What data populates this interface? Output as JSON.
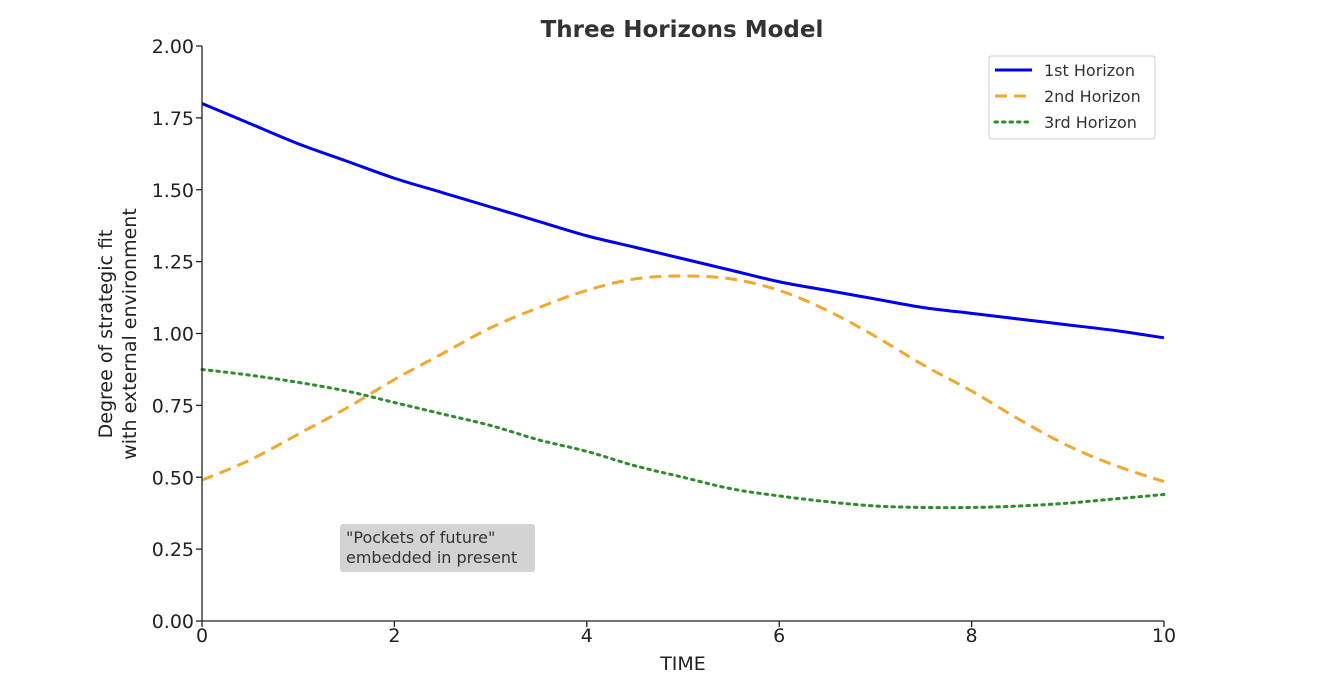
{
  "chart_data": {
    "type": "line",
    "title": "Three Horizons Model",
    "xlabel": "TIME",
    "ylabel_lines": [
      "Degree of strategic fit",
      "with external environment"
    ],
    "xlim": [
      0,
      10
    ],
    "ylim": [
      0,
      2
    ],
    "x_ticks": [
      0,
      2,
      4,
      6,
      8,
      10
    ],
    "x_tick_labels": [
      "0",
      "2",
      "4",
      "6",
      "8",
      "10"
    ],
    "y_ticks": [
      0,
      0.25,
      0.5,
      0.75,
      1.0,
      1.25,
      1.5,
      1.75,
      2.0
    ],
    "y_tick_labels": [
      "0.00",
      "0.25",
      "0.50",
      "0.75",
      "1.00",
      "1.25",
      "1.50",
      "1.75",
      "2.00"
    ],
    "grid": false,
    "legend_position": "top-right",
    "x": [
      0,
      0.5,
      1,
      1.5,
      2,
      2.5,
      3,
      3.5,
      4,
      4.5,
      5,
      5.5,
      6,
      6.5,
      7,
      7.5,
      8,
      8.5,
      9,
      9.5,
      10
    ],
    "series": [
      {
        "name": "1st Horizon",
        "color": "#0000ee",
        "style": "solid",
        "values": [
          1.8,
          1.73,
          1.66,
          1.6,
          1.54,
          1.49,
          1.44,
          1.39,
          1.34,
          1.3,
          1.26,
          1.22,
          1.18,
          1.15,
          1.12,
          1.09,
          1.07,
          1.05,
          1.03,
          1.01,
          0.985
        ]
      },
      {
        "name": "2nd Horizon",
        "color": "#f0a830",
        "style": "dashed",
        "values": [
          0.49,
          0.56,
          0.65,
          0.74,
          0.84,
          0.93,
          1.02,
          1.09,
          1.15,
          1.19,
          1.2,
          1.19,
          1.15,
          1.08,
          0.99,
          0.89,
          0.8,
          0.7,
          0.61,
          0.54,
          0.485
        ]
      },
      {
        "name": "3rd Horizon",
        "color": "#2e8b2e",
        "style": "dotted",
        "values": [
          0.875,
          0.855,
          0.83,
          0.8,
          0.76,
          0.72,
          0.68,
          0.63,
          0.59,
          0.54,
          0.5,
          0.46,
          0.435,
          0.415,
          0.4,
          0.395,
          0.395,
          0.4,
          0.41,
          0.425,
          0.44
        ]
      }
    ],
    "annotation": {
      "lines": [
        "\"Pockets of future\"",
        "embedded in present"
      ],
      "x": 1.5,
      "y": 0.23,
      "background": "#d3d3d3"
    }
  }
}
